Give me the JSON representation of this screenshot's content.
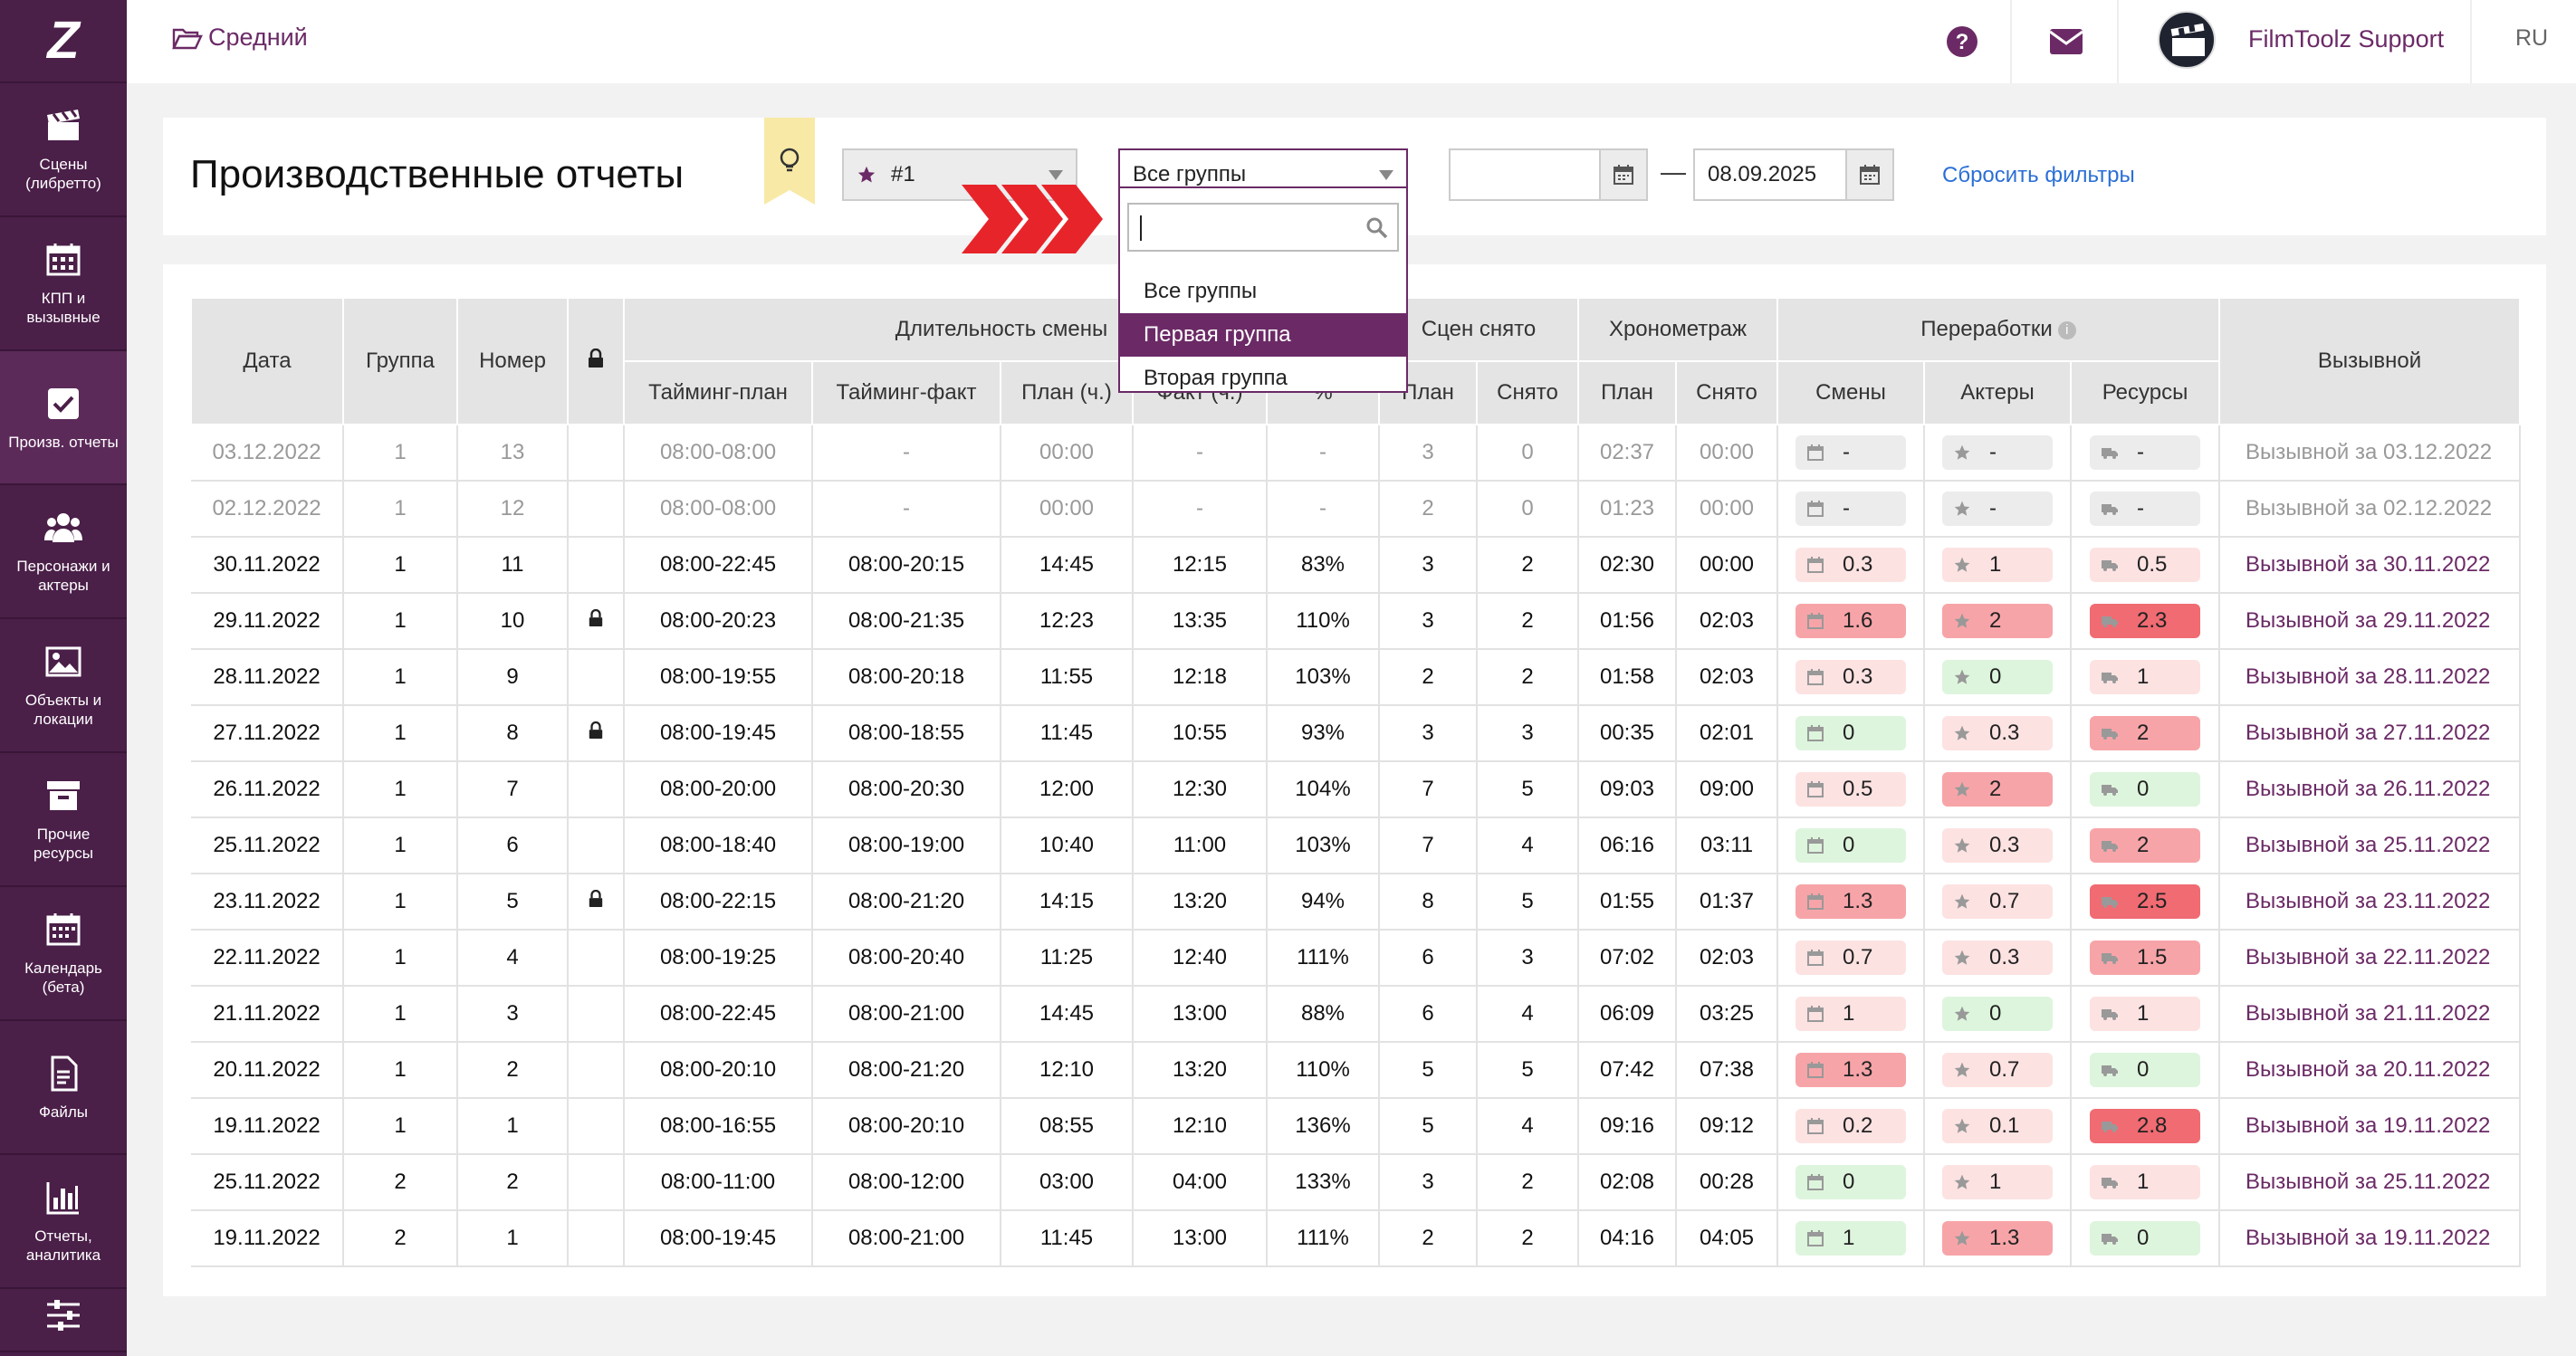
{
  "sidebar": {
    "logo": "Z",
    "items": [
      {
        "icon": "clapperboard-icon",
        "label": "Сцены (либретто)"
      },
      {
        "icon": "calendar-grid-icon",
        "label": "КПП и вызывные"
      },
      {
        "icon": "checkbox-icon",
        "label": "Произв. отчеты",
        "active": true
      },
      {
        "icon": "people-icon",
        "label": "Персонажи и актеры"
      },
      {
        "icon": "image-icon",
        "label": "Объекты и локации"
      },
      {
        "icon": "archive-box-icon",
        "label": "Прочие ресурсы"
      },
      {
        "icon": "calendar-icon",
        "label": "Календарь (бета)"
      },
      {
        "icon": "file-icon",
        "label": "Файлы"
      },
      {
        "icon": "bar-chart-icon",
        "label": "Отчеты, аналитика"
      },
      {
        "icon": "sliders-icon",
        "label": ""
      }
    ]
  },
  "topbar": {
    "breadcrumb": "Средний",
    "user": "FilmToolz Support",
    "lang": "RU"
  },
  "header": {
    "title": "Производственные отчеты",
    "project_select": "#1",
    "group_select": "Все группы",
    "date_from": "",
    "date_to": "08.09.2025",
    "date_sep": "—",
    "reset": "Сбросить фильтры"
  },
  "dropdown": {
    "search_value": "",
    "options": [
      "Все группы",
      "Первая группа",
      "Вторая группа"
    ],
    "highlighted": 1
  },
  "table": {
    "head": {
      "date": "Дата",
      "group": "Группа",
      "number": "Номер",
      "shift": "Длительность смены",
      "scenes": "Сцен снято",
      "timing": "Хронометраж",
      "overtime": "Переработки",
      "callsheet": "Вызывной",
      "t_plan": "Тайминг-план",
      "t_fact": "Тайминг-факт",
      "plan_h": "План (ч.)",
      "fact_h": "Факт (ч.)",
      "pct": "%",
      "s_plan": "План",
      "s_done": "Снято",
      "h_plan": "План",
      "h_done": "Снято",
      "o_shifts": "Смены",
      "o_actors": "Актеры",
      "o_res": "Ресурсы"
    },
    "rows": [
      {
        "date": "03.12.2022",
        "group": "1",
        "num": "13",
        "lock": false,
        "tplan": "08:00-08:00",
        "tfact": "-",
        "planh": "00:00",
        "facth": "-",
        "pct": "-",
        "splan": "3",
        "sdone": "0",
        "hplan": "02:37",
        "hdone": "00:00",
        "o1": "-",
        "o1c": "grey",
        "o2": "-",
        "o2c": "grey",
        "o3": "-",
        "o3c": "grey",
        "call": "Вызывной за 03.12.2022",
        "past": true
      },
      {
        "date": "02.12.2022",
        "group": "1",
        "num": "12",
        "lock": false,
        "tplan": "08:00-08:00",
        "tfact": "-",
        "planh": "00:00",
        "facth": "-",
        "pct": "-",
        "splan": "2",
        "sdone": "0",
        "hplan": "01:23",
        "hdone": "00:00",
        "o1": "-",
        "o1c": "grey",
        "o2": "-",
        "o2c": "grey",
        "o3": "-",
        "o3c": "grey",
        "call": "Вызывной за 02.12.2022",
        "past": true
      },
      {
        "date": "30.11.2022",
        "group": "1",
        "num": "11",
        "lock": false,
        "tplan": "08:00-22:45",
        "tfact": "08:00-20:15",
        "planh": "14:45",
        "facth": "12:15",
        "pct": "83%",
        "splan": "3",
        "sdone": "2",
        "hplan": "02:30",
        "hdone": "00:00",
        "o1": "0.3",
        "o1c": "lred",
        "o2": "1",
        "o2c": "lred",
        "o3": "0.5",
        "o3c": "lred",
        "call": "Вызывной за 30.11.2022"
      },
      {
        "date": "29.11.2022",
        "group": "1",
        "num": "10",
        "lock": true,
        "tplan": "08:00-20:23",
        "tfact": "08:00-21:35",
        "planh": "12:23",
        "facth": "13:35",
        "pct": "110%",
        "splan": "3",
        "sdone": "2",
        "hplan": "01:56",
        "hdone": "02:03",
        "o1": "1.6",
        "o1c": "red",
        "o2": "2",
        "o2c": "red",
        "o3": "2.3",
        "o3c": "dred",
        "call": "Вызывной за 29.11.2022"
      },
      {
        "date": "28.11.2022",
        "group": "1",
        "num": "9",
        "lock": false,
        "tplan": "08:00-19:55",
        "tfact": "08:00-20:18",
        "planh": "11:55",
        "facth": "12:18",
        "pct": "103%",
        "splan": "2",
        "sdone": "2",
        "hplan": "01:58",
        "hdone": "02:03",
        "o1": "0.3",
        "o1c": "lred",
        "o2": "0",
        "o2c": "green",
        "o3": "1",
        "o3c": "lred",
        "call": "Вызывной за 28.11.2022"
      },
      {
        "date": "27.11.2022",
        "group": "1",
        "num": "8",
        "lock": true,
        "tplan": "08:00-19:45",
        "tfact": "08:00-18:55",
        "planh": "11:45",
        "facth": "10:55",
        "pct": "93%",
        "splan": "3",
        "sdone": "3",
        "hplan": "00:35",
        "hdone": "02:01",
        "o1": "0",
        "o1c": "green",
        "o2": "0.3",
        "o2c": "lred",
        "o3": "2",
        "o3c": "red",
        "call": "Вызывной за 27.11.2022"
      },
      {
        "date": "26.11.2022",
        "group": "1",
        "num": "7",
        "lock": false,
        "tplan": "08:00-20:00",
        "tfact": "08:00-20:30",
        "planh": "12:00",
        "facth": "12:30",
        "pct": "104%",
        "splan": "7",
        "sdone": "5",
        "hplan": "09:03",
        "hdone": "09:00",
        "o1": "0.5",
        "o1c": "lred",
        "o2": "2",
        "o2c": "red",
        "o3": "0",
        "o3c": "green",
        "call": "Вызывной за 26.11.2022"
      },
      {
        "date": "25.11.2022",
        "group": "1",
        "num": "6",
        "lock": false,
        "tplan": "08:00-18:40",
        "tfact": "08:00-19:00",
        "planh": "10:40",
        "facth": "11:00",
        "pct": "103%",
        "splan": "7",
        "sdone": "4",
        "hplan": "06:16",
        "hdone": "03:11",
        "o1": "0",
        "o1c": "green",
        "o2": "0.3",
        "o2c": "lred",
        "o3": "2",
        "o3c": "red",
        "call": "Вызывной за 25.11.2022"
      },
      {
        "date": "23.11.2022",
        "group": "1",
        "num": "5",
        "lock": true,
        "tplan": "08:00-22:15",
        "tfact": "08:00-21:20",
        "planh": "14:15",
        "facth": "13:20",
        "pct": "94%",
        "splan": "8",
        "sdone": "5",
        "hplan": "01:55",
        "hdone": "01:37",
        "o1": "1.3",
        "o1c": "red",
        "o2": "0.7",
        "o2c": "lred",
        "o3": "2.5",
        "o3c": "dred",
        "call": "Вызывной за 23.11.2022"
      },
      {
        "date": "22.11.2022",
        "group": "1",
        "num": "4",
        "lock": false,
        "tplan": "08:00-19:25",
        "tfact": "08:00-20:40",
        "planh": "11:25",
        "facth": "12:40",
        "pct": "111%",
        "splan": "6",
        "sdone": "3",
        "hplan": "07:02",
        "hdone": "02:03",
        "o1": "0.7",
        "o1c": "lred",
        "o2": "0.3",
        "o2c": "lred",
        "o3": "1.5",
        "o3c": "red",
        "call": "Вызывной за 22.11.2022"
      },
      {
        "date": "21.11.2022",
        "group": "1",
        "num": "3",
        "lock": false,
        "tplan": "08:00-22:45",
        "tfact": "08:00-21:00",
        "planh": "14:45",
        "facth": "13:00",
        "pct": "88%",
        "splan": "6",
        "sdone": "4",
        "hplan": "06:09",
        "hdone": "03:25",
        "o1": "1",
        "o1c": "lred",
        "o2": "0",
        "o2c": "green",
        "o3": "1",
        "o3c": "lred",
        "call": "Вызывной за 21.11.2022"
      },
      {
        "date": "20.11.2022",
        "group": "1",
        "num": "2",
        "lock": false,
        "tplan": "08:00-20:10",
        "tfact": "08:00-21:20",
        "planh": "12:10",
        "facth": "13:20",
        "pct": "110%",
        "splan": "5",
        "sdone": "5",
        "hplan": "07:42",
        "hdone": "07:38",
        "o1": "1.3",
        "o1c": "red",
        "o2": "0.7",
        "o2c": "lred",
        "o3": "0",
        "o3c": "green",
        "call": "Вызывной за 20.11.2022"
      },
      {
        "date": "19.11.2022",
        "group": "1",
        "num": "1",
        "lock": false,
        "tplan": "08:00-16:55",
        "tfact": "08:00-20:10",
        "planh": "08:55",
        "facth": "12:10",
        "pct": "136%",
        "splan": "5",
        "sdone": "4",
        "hplan": "09:16",
        "hdone": "09:12",
        "o1": "0.2",
        "o1c": "lred",
        "o2": "0.1",
        "o2c": "lred",
        "o3": "2.8",
        "o3c": "dred",
        "call": "Вызывной за 19.11.2022"
      },
      {
        "date": "25.11.2022",
        "group": "2",
        "num": "2",
        "lock": false,
        "tplan": "08:00-11:00",
        "tfact": "08:00-12:00",
        "planh": "03:00",
        "facth": "04:00",
        "pct": "133%",
        "splan": "3",
        "sdone": "2",
        "hplan": "02:08",
        "hdone": "00:28",
        "o1": "0",
        "o1c": "green",
        "o2": "1",
        "o2c": "lred",
        "o3": "1",
        "o3c": "lred",
        "call": "Вызывной за 25.11.2022"
      },
      {
        "date": "19.11.2022",
        "group": "2",
        "num": "1",
        "lock": false,
        "tplan": "08:00-19:45",
        "tfact": "08:00-21:00",
        "planh": "11:45",
        "facth": "13:00",
        "pct": "111%",
        "splan": "2",
        "sdone": "2",
        "hplan": "04:16",
        "hdone": "04:05",
        "o1": "1",
        "o1c": "green",
        "o2": "1.3",
        "o2c": "red",
        "o3": "0",
        "o3c": "green",
        "call": "Вызывной за 19.11.2022"
      }
    ]
  }
}
